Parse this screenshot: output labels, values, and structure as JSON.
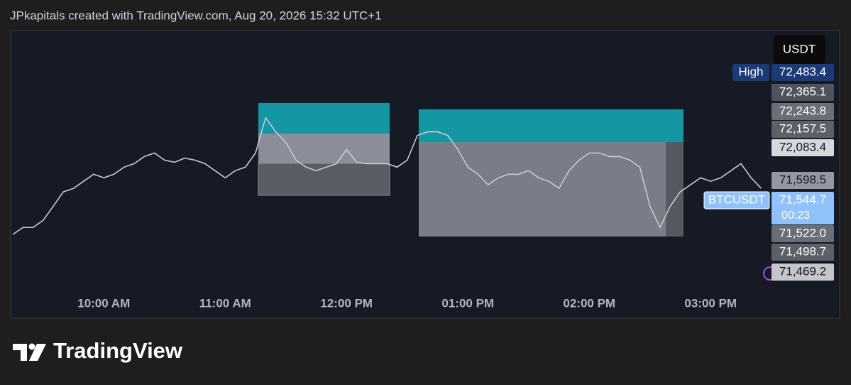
{
  "header": "JPkapitals created with TradingView.com, Aug 20, 2026 15:32 UTC+1",
  "brand": "TradingView",
  "chart_data": {
    "type": "line",
    "currency": "USDT",
    "color": "#c8cbd3",
    "ylim": [
      71390,
      72700
    ],
    "categories": [
      null,
      null,
      null,
      null,
      null,
      null,
      null,
      null,
      null,
      "10:00 AM",
      null,
      null,
      null,
      null,
      null,
      null,
      null,
      null,
      null,
      null,
      null,
      "11:00 AM",
      null,
      null,
      null,
      null,
      null,
      null,
      null,
      null,
      null,
      null,
      null,
      "12:00 PM",
      null,
      null,
      null,
      null,
      null,
      null,
      null,
      null,
      null,
      null,
      null,
      "01:00 PM",
      null,
      null,
      null,
      null,
      null,
      null,
      null,
      null,
      null,
      null,
      null,
      "02:00 PM",
      null,
      null,
      null,
      null,
      null,
      null,
      null,
      null,
      null,
      null,
      null,
      "03:00 PM",
      null,
      null,
      null,
      null,
      null
    ],
    "values": [
      71661,
      71697,
      71697,
      71733,
      71805,
      71878,
      71896,
      71932,
      71968,
      71950,
      71968,
      72004,
      72022,
      72058,
      72076,
      72040,
      72029,
      72050,
      72040,
      72022,
      71986,
      71950,
      71986,
      72004,
      72076,
      72256,
      72184,
      72130,
      72040,
      72004,
      71986,
      72004,
      72022,
      72094,
      72029,
      72022,
      72022,
      72022,
      72004,
      72040,
      72166,
      72184,
      72184,
      72166,
      72094,
      72004,
      71968,
      71914,
      71950,
      71968,
      71968,
      71986,
      71950,
      71932,
      71896,
      71986,
      72040,
      72076,
      72076,
      72058,
      72058,
      72040,
      72004,
      71805,
      71697,
      71805,
      71878,
      71914,
      71950,
      71932,
      71950,
      71986,
      72022,
      71950,
      71896
    ],
    "price_labels": [
      {
        "value": 72483.4,
        "label": "72,483.4",
        "tag": "High",
        "color": "#1c3a78"
      },
      {
        "value": 72365.1,
        "label": "72,365.1",
        "color": "#50535c"
      },
      {
        "value": 72243.8,
        "label": "72,243.8",
        "color": "#6b6e78"
      },
      {
        "value": 72157.5,
        "label": "72,157.5",
        "color": "#5d6069"
      },
      {
        "value": 72083.4,
        "label": "72,083.4",
        "color": "#d6d8dd"
      },
      {
        "value": 71598.5,
        "label": "71,598.5",
        "color": "#9598a1"
      },
      {
        "value": 71544.7,
        "label": "71,544.7",
        "tag": "BTCUSDT",
        "countdown": "00:23",
        "color": "#90c2f9"
      },
      {
        "value": 71522.0,
        "label": "71,522.0",
        "color": "#6b6e78"
      },
      {
        "value": 71498.7,
        "label": "71,498.7",
        "color": "#5d6069"
      },
      {
        "value": 71469.2,
        "label": "71,469.2",
        "color": "#c4c6cc"
      }
    ]
  }
}
